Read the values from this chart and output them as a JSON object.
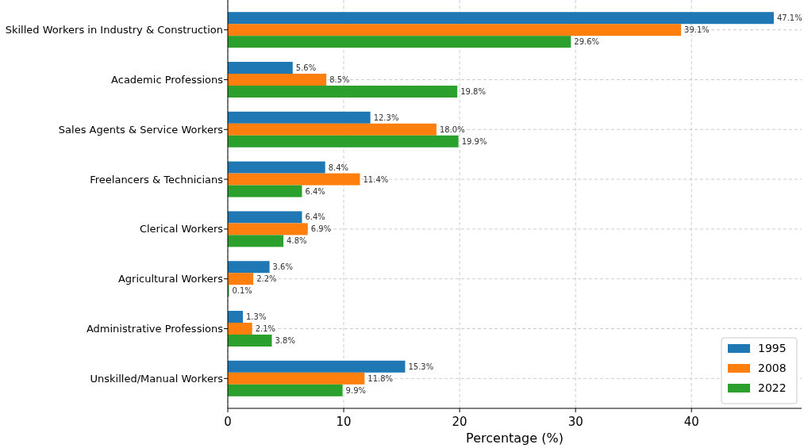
{
  "chart_data": {
    "type": "bar",
    "orientation": "horizontal",
    "xlabel": "Percentage (%)",
    "categories": [
      "Skilled Workers in Industry & Construction",
      "Academic Professions",
      "Sales Agents & Service Workers",
      "Freelancers & Technicians",
      "Clerical Workers",
      "Agricultural Workers",
      "Administrative Professions",
      "Unskilled/Manual Workers"
    ],
    "series": [
      {
        "name": "1995",
        "color": "#1f77b4",
        "values": [
          47.1,
          5.6,
          12.3,
          8.4,
          6.4,
          3.6,
          1.3,
          15.3
        ],
        "value_labels": [
          "47.1%",
          "5.6%",
          "12.3%",
          "8.4%",
          "6.4%",
          "3.6%",
          "1.3%",
          "15.3%"
        ]
      },
      {
        "name": "2008",
        "color": "#ff7f0e",
        "values": [
          39.1,
          8.5,
          18.0,
          11.4,
          6.9,
          2.2,
          2.1,
          11.8
        ],
        "value_labels": [
          "39.1%",
          "8.5%",
          "18.0%",
          "11.4%",
          "6.9%",
          "2.2%",
          "2.1%",
          "11.8%"
        ]
      },
      {
        "name": "2022",
        "color": "#2ca02c",
        "values": [
          29.6,
          19.8,
          19.9,
          6.4,
          4.8,
          0.1,
          3.8,
          9.9
        ],
        "value_labels": [
          "29.6%",
          "19.8%",
          "19.9%",
          "6.4%",
          "4.8%",
          "0.1%",
          "3.8%",
          "9.9%"
        ]
      }
    ],
    "xlim": [
      0,
      49.5
    ],
    "xticks": [
      0,
      10,
      20,
      30,
      40
    ],
    "grid": true,
    "legend": "bottom right"
  }
}
